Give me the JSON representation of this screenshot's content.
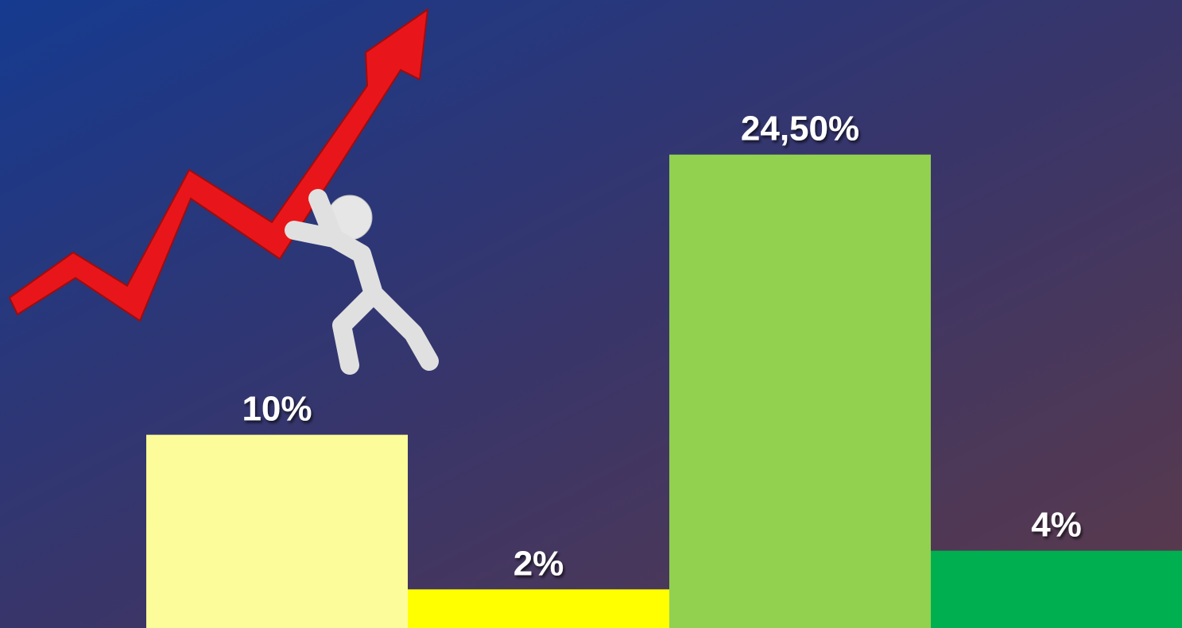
{
  "chart_data": {
    "type": "bar",
    "categories": [
      null,
      null,
      null,
      null
    ],
    "values": [
      10,
      2,
      24.5,
      4
    ],
    "value_labels": [
      "10%",
      "2%",
      "24,50%",
      "4%"
    ],
    "colors": [
      "#fcfc9a",
      "#ffff00",
      "#92d050",
      "#00b050"
    ],
    "ylim": [
      0,
      32.5
    ]
  }
}
